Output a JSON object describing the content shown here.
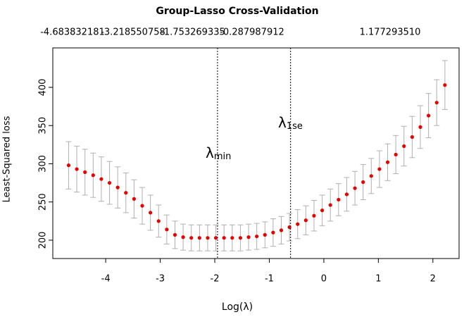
{
  "chart_data": {
    "type": "scatter",
    "title": "Group-Lasso Cross-Validation",
    "top_labels": [
      "-4.683832181",
      "-3.218550758",
      "-1.753269335",
      "-0.287987912",
      "1.177293510"
    ],
    "xlabel": "Log(λ)",
    "ylabel": "Least-Squared loss",
    "x": [
      -4.68,
      -4.53,
      -4.38,
      -4.23,
      -4.08,
      -3.93,
      -3.78,
      -3.63,
      -3.48,
      -3.33,
      -3.18,
      -3.03,
      -2.88,
      -2.73,
      -2.58,
      -2.43,
      -2.28,
      -2.13,
      -1.98,
      -1.83,
      -1.68,
      -1.53,
      -1.38,
      -1.23,
      -1.08,
      -0.93,
      -0.78,
      -0.63,
      -0.48,
      -0.33,
      -0.18,
      -0.03,
      0.12,
      0.27,
      0.42,
      0.57,
      0.72,
      0.87,
      1.02,
      1.17,
      1.32,
      1.47,
      1.62,
      1.77,
      1.92,
      2.07,
      2.22
    ],
    "values": [
      298,
      293,
      289,
      285,
      280,
      275,
      269,
      262,
      254,
      245,
      236,
      225,
      214,
      207,
      204,
      203,
      203,
      203,
      203,
      203,
      203,
      203,
      204,
      205,
      207,
      210,
      213,
      217,
      221,
      226,
      232,
      239,
      246,
      253,
      260,
      268,
      276,
      284,
      293,
      302,
      312,
      323,
      335,
      348,
      363,
      380,
      403
    ],
    "errors": [
      31,
      30,
      30,
      29,
      29,
      28,
      27,
      26,
      25,
      24,
      23,
      21,
      19,
      18,
      17,
      17,
      17,
      17,
      17,
      17,
      17,
      17,
      17,
      17,
      17,
      18,
      18,
      18,
      19,
      19,
      20,
      20,
      21,
      21,
      22,
      22,
      23,
      23,
      24,
      24,
      25,
      26,
      27,
      28,
      29,
      30,
      32
    ],
    "color": "#e60000",
    "error_color": "#b0b0b0",
    "xlim": [
      -4.97,
      2.48
    ],
    "ylim": [
      176,
      451.6
    ],
    "xticks": [
      -4,
      -3,
      -2,
      -1,
      0,
      1,
      2
    ],
    "yticks": [
      200,
      250,
      300,
      350,
      400
    ],
    "vlines": [
      -1.95,
      -0.61
    ],
    "annotations": [
      {
        "symbol": "λ",
        "subscript": "min"
      },
      {
        "symbol": "λ",
        "subscript": "1se"
      }
    ]
  }
}
